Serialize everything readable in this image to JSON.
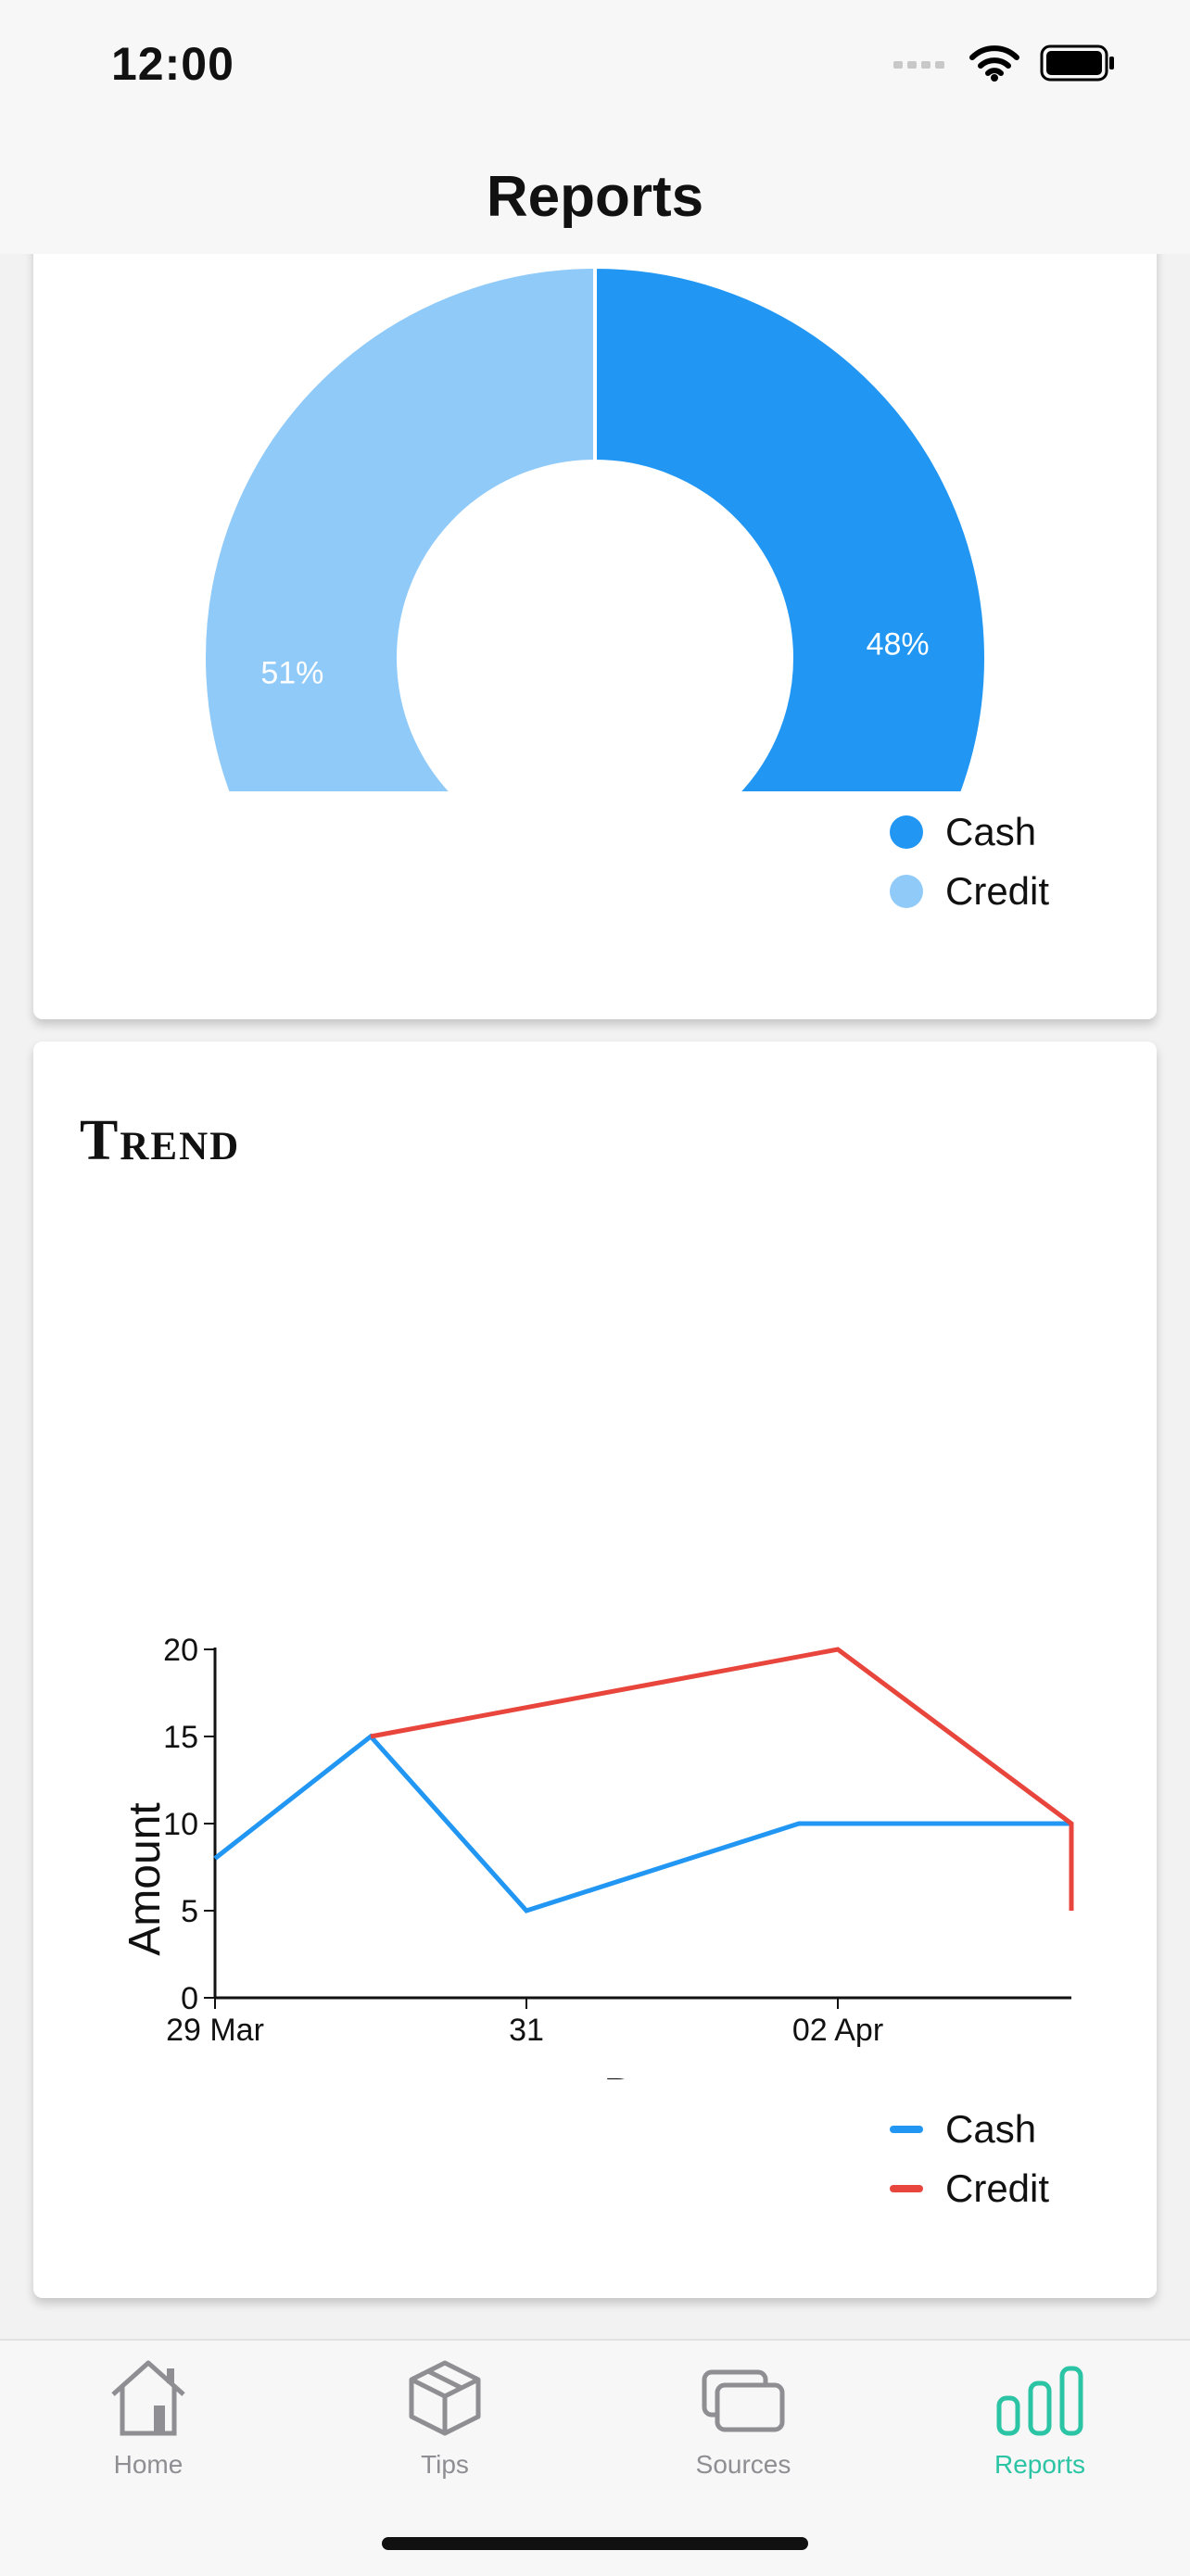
{
  "status_bar": {
    "time": "12:00"
  },
  "header": {
    "title": "Reports"
  },
  "pie_card": {
    "legend": [
      {
        "label": "Cash",
        "color": "#2196F3"
      },
      {
        "label": "Credit",
        "color": "#90CAF9"
      }
    ]
  },
  "trend_card": {
    "title": "Trend",
    "legend": [
      {
        "label": "Cash",
        "color": "#2196F3"
      },
      {
        "label": "Credit",
        "color": "#E8453C"
      }
    ]
  },
  "chart_data": [
    {
      "type": "pie",
      "style": "donut",
      "slices": [
        {
          "label": "Cash",
          "value": 48,
          "display": "48%",
          "color": "#2196F3"
        },
        {
          "label": "Credit",
          "value": 51,
          "display": "51%",
          "color": "#90CAF9"
        }
      ],
      "legend_position": "bottom-right"
    },
    {
      "type": "line",
      "xlabel": "Dates",
      "ylabel": "Amount",
      "x_ticks": [
        "29 Mar",
        "31",
        "02 Apr"
      ],
      "y_ticks": [
        0,
        5,
        10,
        15,
        20
      ],
      "ylim": [
        0,
        20
      ],
      "series": [
        {
          "name": "Cash",
          "color": "#2196F3",
          "x": [
            "2021-03-29",
            "2021-03-30",
            "2021-03-31",
            "2021-04-01 18:00",
            "2021-04-03 12:00",
            "2021-04-03 12:00"
          ],
          "values": [
            8,
            15,
            5,
            10,
            10,
            10
          ]
        },
        {
          "name": "Credit",
          "color": "#E8453C",
          "x": [
            "2021-03-30",
            "2021-04-02",
            "2021-04-03 12:00",
            "2021-04-03 12:00"
          ],
          "values": [
            15,
            20,
            10,
            5
          ]
        }
      ],
      "grid": false,
      "legend_position": "bottom-right"
    }
  ],
  "tab_bar": {
    "tabs": [
      {
        "label": "Home",
        "icon": "home-icon",
        "active": false
      },
      {
        "label": "Tips",
        "icon": "box-icon",
        "active": false
      },
      {
        "label": "Sources",
        "icon": "cards-icon",
        "active": false
      },
      {
        "label": "Reports",
        "icon": "bar-chart-icon",
        "active": true
      }
    ],
    "active_color": "#2BC4A4",
    "inactive_color": "#8E8E93"
  }
}
